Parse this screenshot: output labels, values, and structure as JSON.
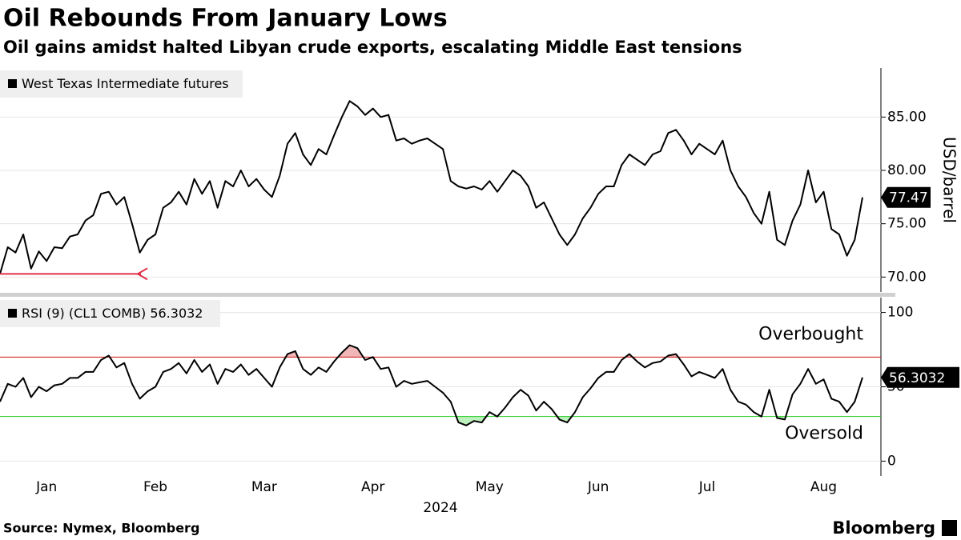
{
  "title": "Oil Rebounds From January Lows",
  "subtitle": "Oil gains amidst halted Libyan crude exports, escalating Middle East tensions",
  "source": "Source: Nymex, Bloomberg",
  "brand": "Bloomberg",
  "chart_data": {
    "type": "line",
    "xlabel": "2024",
    "categories": [
      null,
      null,
      null,
      null,
      null,
      null,
      "Jan",
      null,
      null,
      null,
      null,
      null,
      null,
      null,
      null,
      null,
      null,
      null,
      null,
      null,
      "Feb",
      null,
      null,
      null,
      null,
      null,
      null,
      null,
      null,
      null,
      null,
      null,
      null,
      null,
      "Mar",
      null,
      null,
      null,
      null,
      null,
      null,
      null,
      null,
      null,
      null,
      null,
      null,
      null,
      "Apr",
      null,
      null,
      null,
      null,
      null,
      null,
      null,
      null,
      null,
      null,
      null,
      null,
      null,
      null,
      "May",
      null,
      null,
      null,
      null,
      null,
      null,
      null,
      null,
      null,
      null,
      null,
      null,
      null,
      "Jun",
      null,
      null,
      null,
      null,
      null,
      null,
      null,
      null,
      null,
      null,
      null,
      null,
      null,
      "Jul",
      null,
      null,
      null,
      null,
      null,
      null,
      null,
      null,
      null,
      null,
      null,
      null,
      null,
      null,
      "Aug",
      null,
      null,
      null,
      null,
      null
    ],
    "panels": [
      {
        "ylabel": "USD/barrel",
        "ylim": [
          68.6,
          89.6
        ],
        "grid": true,
        "yticks": [
          {
            "value": 70,
            "label": "70.00"
          },
          {
            "value": 75,
            "label": "75.00"
          },
          {
            "value": 80,
            "label": "80.00"
          },
          {
            "value": 85,
            "label": "85.00"
          }
        ],
        "series": [
          {
            "name": "West Texas Intermediate futures",
            "color": "#000000",
            "values": [
              70.3,
              72.8,
              72.3,
              74.0,
              70.8,
              72.4,
              71.5,
              72.8,
              72.7,
              73.8,
              74.0,
              75.3,
              75.8,
              77.8,
              78.0,
              76.8,
              77.5,
              75.0,
              72.3,
              73.5,
              74.0,
              76.5,
              77.0,
              78.0,
              76.8,
              79.2,
              77.8,
              79.0,
              76.5,
              79.0,
              78.5,
              80.0,
              78.5,
              79.2,
              78.2,
              77.5,
              79.5,
              82.5,
              83.5,
              81.5,
              80.5,
              82.0,
              81.5,
              83.3,
              85.0,
              86.5,
              86.0,
              85.2,
              85.8,
              85.0,
              85.2,
              82.8,
              83.0,
              82.5,
              82.8,
              83.0,
              82.5,
              82.0,
              79.0,
              78.5,
              78.3,
              78.5,
              78.2,
              79.0,
              78.0,
              79.0,
              80.0,
              79.5,
              78.5,
              76.5,
              77.0,
              75.5,
              74.0,
              73.0,
              74.0,
              75.5,
              76.5,
              77.8,
              78.5,
              78.5,
              80.5,
              81.5,
              81.0,
              80.5,
              81.5,
              81.8,
              83.5,
              83.8,
              82.8,
              81.5,
              82.5,
              82.0,
              81.5,
              82.8,
              80.0,
              78.5,
              77.5,
              76.0,
              75.0,
              78.0,
              73.5,
              73.0,
              75.3,
              76.8,
              80.0,
              77.0,
              78.0,
              74.5,
              74.0,
              72.0,
              73.5,
              77.47
            ]
          }
        ],
        "arrow": {
          "color": "#e0304a"
        }
      },
      {
        "ylim": [
          -10,
          110
        ],
        "grid": true,
        "yticks": [
          0,
          50,
          100
        ],
        "thresholds": [
          {
            "label": "Overbought",
            "value": 70,
            "color": "#d01010",
            "side": "above"
          },
          {
            "label": "Oversold",
            "value": 30,
            "color": "#22cc22",
            "side": "below"
          }
        ],
        "series": [
          {
            "name": "RSI (9) (CL1 COMB)",
            "color": "#000000",
            "values": [
              40,
              52,
              50,
              56,
              43,
              50,
              47,
              51,
              52,
              56,
              56,
              60,
              60,
              68,
              71,
              63,
              66,
              52,
              42,
              47,
              50,
              60,
              62,
              66,
              59,
              68,
              60,
              65,
              52,
              62,
              60,
              65,
              58,
              62,
              56,
              50,
              63,
              72,
              74,
              62,
              58,
              63,
              60,
              67,
              73,
              78,
              76,
              68,
              70,
              62,
              63,
              50,
              54,
              52,
              53,
              54,
              50,
              46,
              40,
              26,
              24,
              27,
              26,
              33,
              30,
              36,
              43,
              48,
              44,
              34,
              40,
              35,
              28,
              26,
              33,
              43,
              49,
              56,
              60,
              60,
              68,
              72,
              67,
              63,
              66,
              67,
              71,
              72,
              65,
              57,
              60,
              58,
              56,
              62,
              48,
              40,
              38,
              33,
              30,
              48,
              29,
              28,
              45,
              52,
              62,
              52,
              55,
              42,
              40,
              33,
              40,
              56.3032
            ]
          }
        ]
      }
    ]
  }
}
